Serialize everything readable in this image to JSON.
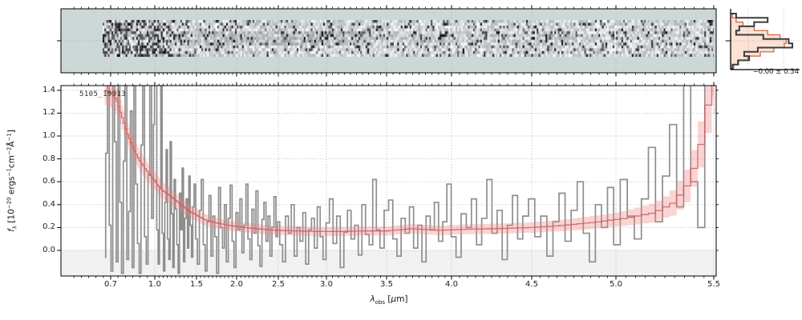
{
  "figure": {
    "object_id": "5105_19913"
  },
  "axes": {
    "x": {
      "label_parts": [
        [
          "i",
          "λ"
        ],
        [
          "sub",
          "obs"
        ],
        [
          "n",
          " ["
        ],
        [
          "i",
          "μ"
        ],
        [
          "n",
          "m]"
        ]
      ],
      "ticks": [
        {
          "v": 0.7,
          "label": "0.7"
        },
        {
          "v": 1.0,
          "label": "1.0"
        },
        {
          "v": 1.5,
          "label": "1.5"
        },
        {
          "v": 2.0,
          "label": "2.0"
        },
        {
          "v": 2.5,
          "label": "2.5"
        },
        {
          "v": 3.0,
          "label": "3.0"
        },
        {
          "v": 3.5,
          "label": "3.5"
        },
        {
          "v": 4.0,
          "label": "4.0"
        },
        {
          "v": 4.5,
          "label": "4.5"
        },
        {
          "v": 5.0,
          "label": "5.0"
        },
        {
          "v": 5.5,
          "label": "5.5"
        }
      ],
      "minor_step": 0.05,
      "minor_range": [
        0.45,
        5.5
      ]
    },
    "y": {
      "label_parts": [
        [
          "i",
          "f"
        ],
        [
          "sub",
          "λ"
        ],
        [
          "n",
          " [10"
        ],
        [
          "sup",
          "−20"
        ],
        [
          "n",
          " ergs"
        ],
        [
          "sup",
          "−1"
        ],
        [
          "n",
          "cm"
        ],
        [
          "sup",
          "−2"
        ],
        [
          "n",
          "Å"
        ],
        [
          "sup",
          "−1"
        ],
        [
          "n",
          "]"
        ]
      ],
      "ticks": [
        {
          "v": 0.0,
          "label": "0.0"
        },
        {
          "v": 0.2,
          "label": "0.2"
        },
        {
          "v": 0.4,
          "label": "0.4"
        },
        {
          "v": 0.6,
          "label": "0.6"
        },
        {
          "v": 0.8,
          "label": "0.8"
        },
        {
          "v": 1.0,
          "label": "1.0"
        },
        {
          "v": 1.2,
          "label": "1.2"
        },
        {
          "v": 1.4,
          "label": "1.4"
        }
      ]
    }
  },
  "histogram_panel": {
    "stats_label": "−0.00 ± 0.34"
  },
  "colors": {
    "panel2d_bg": "#cbd8d5",
    "flux_line": "#8e8e8e",
    "model_line": "#c75f5f",
    "model_band": "#f08080",
    "model_band_opacity": 0.35,
    "grid": "#b3b3b3",
    "below_zero_band": "#f1f1f1",
    "hist_dark": "#3c3c3c",
    "hist_fill": "#f3926a",
    "hist_fill_opacity": 0.28,
    "hist_outline": "#cd5f3c",
    "spine": "#000000"
  },
  "chart_data": [
    {
      "type": "heatmap",
      "name": "2d-spectrum-strip",
      "description": "Noisy 2D spectrum cutout (grayscale noise, dense dark pixels at blue end and far red end, faint dark trace along center rows)",
      "x_range_um": [
        0.65,
        5.49
      ],
      "rows": 13,
      "background": "#cbd8d5"
    },
    {
      "type": "line",
      "name": "1d-spectrum",
      "title": "5105_19913",
      "xlabel": "λ_obs [μm]",
      "ylabel": "f_λ [10^−20 ergs^−1 cm^−2 Å^−1]",
      "xlim": [
        0.36,
        5.52
      ],
      "ylim": [
        -0.22,
        1.44
      ],
      "grid": true,
      "series": [
        {
          "name": "observed flux",
          "drawstyle": "steps-mid",
          "color": "#8e8e8e",
          "segments": [
            {
              "start": 0.66,
              "step": 0.012,
              "flux": [
                -0.06,
                0.85,
                1.45,
                0.22,
                -0.18,
                1.45,
                0.95,
                -0.1,
                1.45,
                0.42,
                -0.2,
                0.78,
                1.45,
                -0.08,
                0.34,
                1.22,
                -0.15,
                1.45,
                0.58,
                0.06,
                -0.2,
                0.92,
                1.45,
                0.12,
                -0.12,
                0.66,
                1.45,
                0.28,
                1.1
              ]
            },
            {
              "start": 1.0,
              "step": 0.016,
              "flux": [
                1.45,
                1.45,
                0.18,
                -0.12,
                0.55,
                1.45,
                0.15,
                -0.18,
                0.42,
                0.88,
                0.1,
                -0.08,
                0.95,
                0.32,
                -0.15,
                0.62,
                0.36,
                0.05,
                -0.2,
                0.5,
                0.18,
                0.72,
                -0.1,
                0.28,
                0.45,
                0.02,
                0.65,
                0.22,
                -0.06,
                0.38,
                0.58
              ]
            },
            {
              "start": 1.5,
              "step": 0.024,
              "flux": [
                0.1,
                -0.12,
                0.35,
                0.62,
                0.05,
                -0.18,
                0.25,
                0.48,
                -0.05,
                0.3,
                0.12,
                -0.2,
                0.55,
                0.2,
                0.02,
                0.4,
                -0.1,
                0.28,
                0.57,
                0.08,
                -0.15,
                0.33,
                0.18,
                0.45,
                -0.02,
                0.22,
                0.58,
                0.1,
                -0.08,
                0.36,
                0.15,
                0.52,
                0.04,
                -0.14,
                0.27,
                0.42,
                0.08,
                0.3,
                -0.05,
                0.2,
                0.47,
                0.12
              ]
            },
            {
              "start": 2.5,
              "step": 0.03,
              "flux": [
                0.25,
                0.05,
                -0.1,
                0.3,
                0.15,
                0.4,
                -0.05,
                0.2,
                0.08,
                0.33,
                -0.12,
                0.18,
                0.28,
                0.02,
                0.38,
                0.12,
                -0.08,
                0.24,
                0.45,
                0.06,
                0.3,
                -0.15,
                0.16,
                0.35,
                0.1,
                0.22,
                -0.04,
                0.4,
                0.14,
                0.05,
                0.62,
                0.18,
                0.02
              ]
            },
            {
              "start": 3.5,
              "step": 0.032,
              "flux": [
                0.35,
                0.44,
                0.1,
                -0.05,
                0.28,
                0.15,
                0.38,
                0.02,
                0.22,
                -0.1,
                0.3,
                0.18,
                0.42,
                0.08,
                0.25,
                0.58,
                0.12,
                -0.06,
                0.32,
                0.2,
                0.45,
                0.05,
                0.28,
                0.62,
                0.15,
                0.35,
                -0.08,
                0.22,
                0.48,
                0.1,
                0.3
              ]
            },
            {
              "start": 4.5,
              "step": 0.036,
              "flux": [
                0.45,
                0.12,
                0.3,
                -0.05,
                0.25,
                0.5,
                0.08,
                0.35,
                0.6,
                0.15,
                -0.1,
                0.4,
                0.2,
                0.55,
                0.05,
                0.62,
                0.3,
                0.1,
                0.45,
                0.9,
                0.25,
                0.65,
                1.1,
                0.38,
                1.45,
                0.6,
                0.2,
                1.45,
                1.45
              ]
            }
          ]
        },
        {
          "name": "model",
          "drawstyle": "steps-mid",
          "color": "#c75f5f",
          "anchors": [
            [
              0.66,
              1.4
            ],
            [
              0.7,
              1.38
            ],
            [
              0.74,
              1.32
            ],
            [
              0.78,
              1.16
            ],
            [
              0.82,
              1.0
            ],
            [
              0.86,
              0.88
            ],
            [
              0.9,
              0.78
            ],
            [
              0.95,
              0.69
            ],
            [
              1.0,
              0.61
            ],
            [
              1.05,
              0.56
            ],
            [
              1.1,
              0.52
            ],
            [
              1.2,
              0.47
            ],
            [
              1.3,
              0.41
            ],
            [
              1.4,
              0.35
            ],
            [
              1.5,
              0.31
            ],
            [
              1.6,
              0.27
            ],
            [
              1.75,
              0.24
            ],
            [
              1.9,
              0.22
            ],
            [
              2.1,
              0.2
            ],
            [
              2.3,
              0.185
            ],
            [
              2.5,
              0.175
            ],
            [
              2.7,
              0.17
            ],
            [
              2.9,
              0.165
            ],
            [
              3.1,
              0.165
            ],
            [
              3.3,
              0.17
            ],
            [
              3.5,
              0.17
            ],
            [
              3.7,
              0.19
            ],
            [
              3.9,
              0.175
            ],
            [
              4.1,
              0.185
            ],
            [
              4.3,
              0.19
            ],
            [
              4.5,
              0.2
            ],
            [
              4.7,
              0.22
            ],
            [
              4.9,
              0.25
            ],
            [
              5.05,
              0.28
            ],
            [
              5.2,
              0.33
            ],
            [
              5.3,
              0.42
            ],
            [
              5.38,
              0.6
            ],
            [
              5.44,
              0.95
            ],
            [
              5.48,
              1.35
            ],
            [
              5.52,
              1.75
            ]
          ]
        },
        {
          "name": "model uncertainty band",
          "band_color": "#f08080",
          "band_opacity": 0.35,
          "err_anchors": [
            [
              0.66,
              0.13
            ],
            [
              0.8,
              0.1
            ],
            [
              1.0,
              0.08
            ],
            [
              1.3,
              0.06
            ],
            [
              1.8,
              0.045
            ],
            [
              2.5,
              0.04
            ],
            [
              3.5,
              0.04
            ],
            [
              4.5,
              0.045
            ],
            [
              5.0,
              0.06
            ],
            [
              5.25,
              0.09
            ],
            [
              5.4,
              0.16
            ],
            [
              5.52,
              0.3
            ]
          ]
        }
      ]
    },
    {
      "type": "histogram",
      "name": "pixel-residual-distribution",
      "orientation": "horizontal",
      "stats_label": "−0.00 ± 0.34",
      "mean": -0.0,
      "sigma": 0.34,
      "bins_relative": [
        0.09,
        0.6,
        0.38,
        0.14,
        0.09,
        0.53,
        0.94,
        1.0,
        0.44,
        0.22,
        0.3,
        0.12,
        0.03
      ],
      "gaussian_relative": [
        0.03,
        0.09,
        0.2,
        0.38,
        0.6,
        0.8,
        0.9,
        0.87,
        0.7,
        0.48,
        0.28,
        0.13,
        0.05
      ]
    }
  ]
}
